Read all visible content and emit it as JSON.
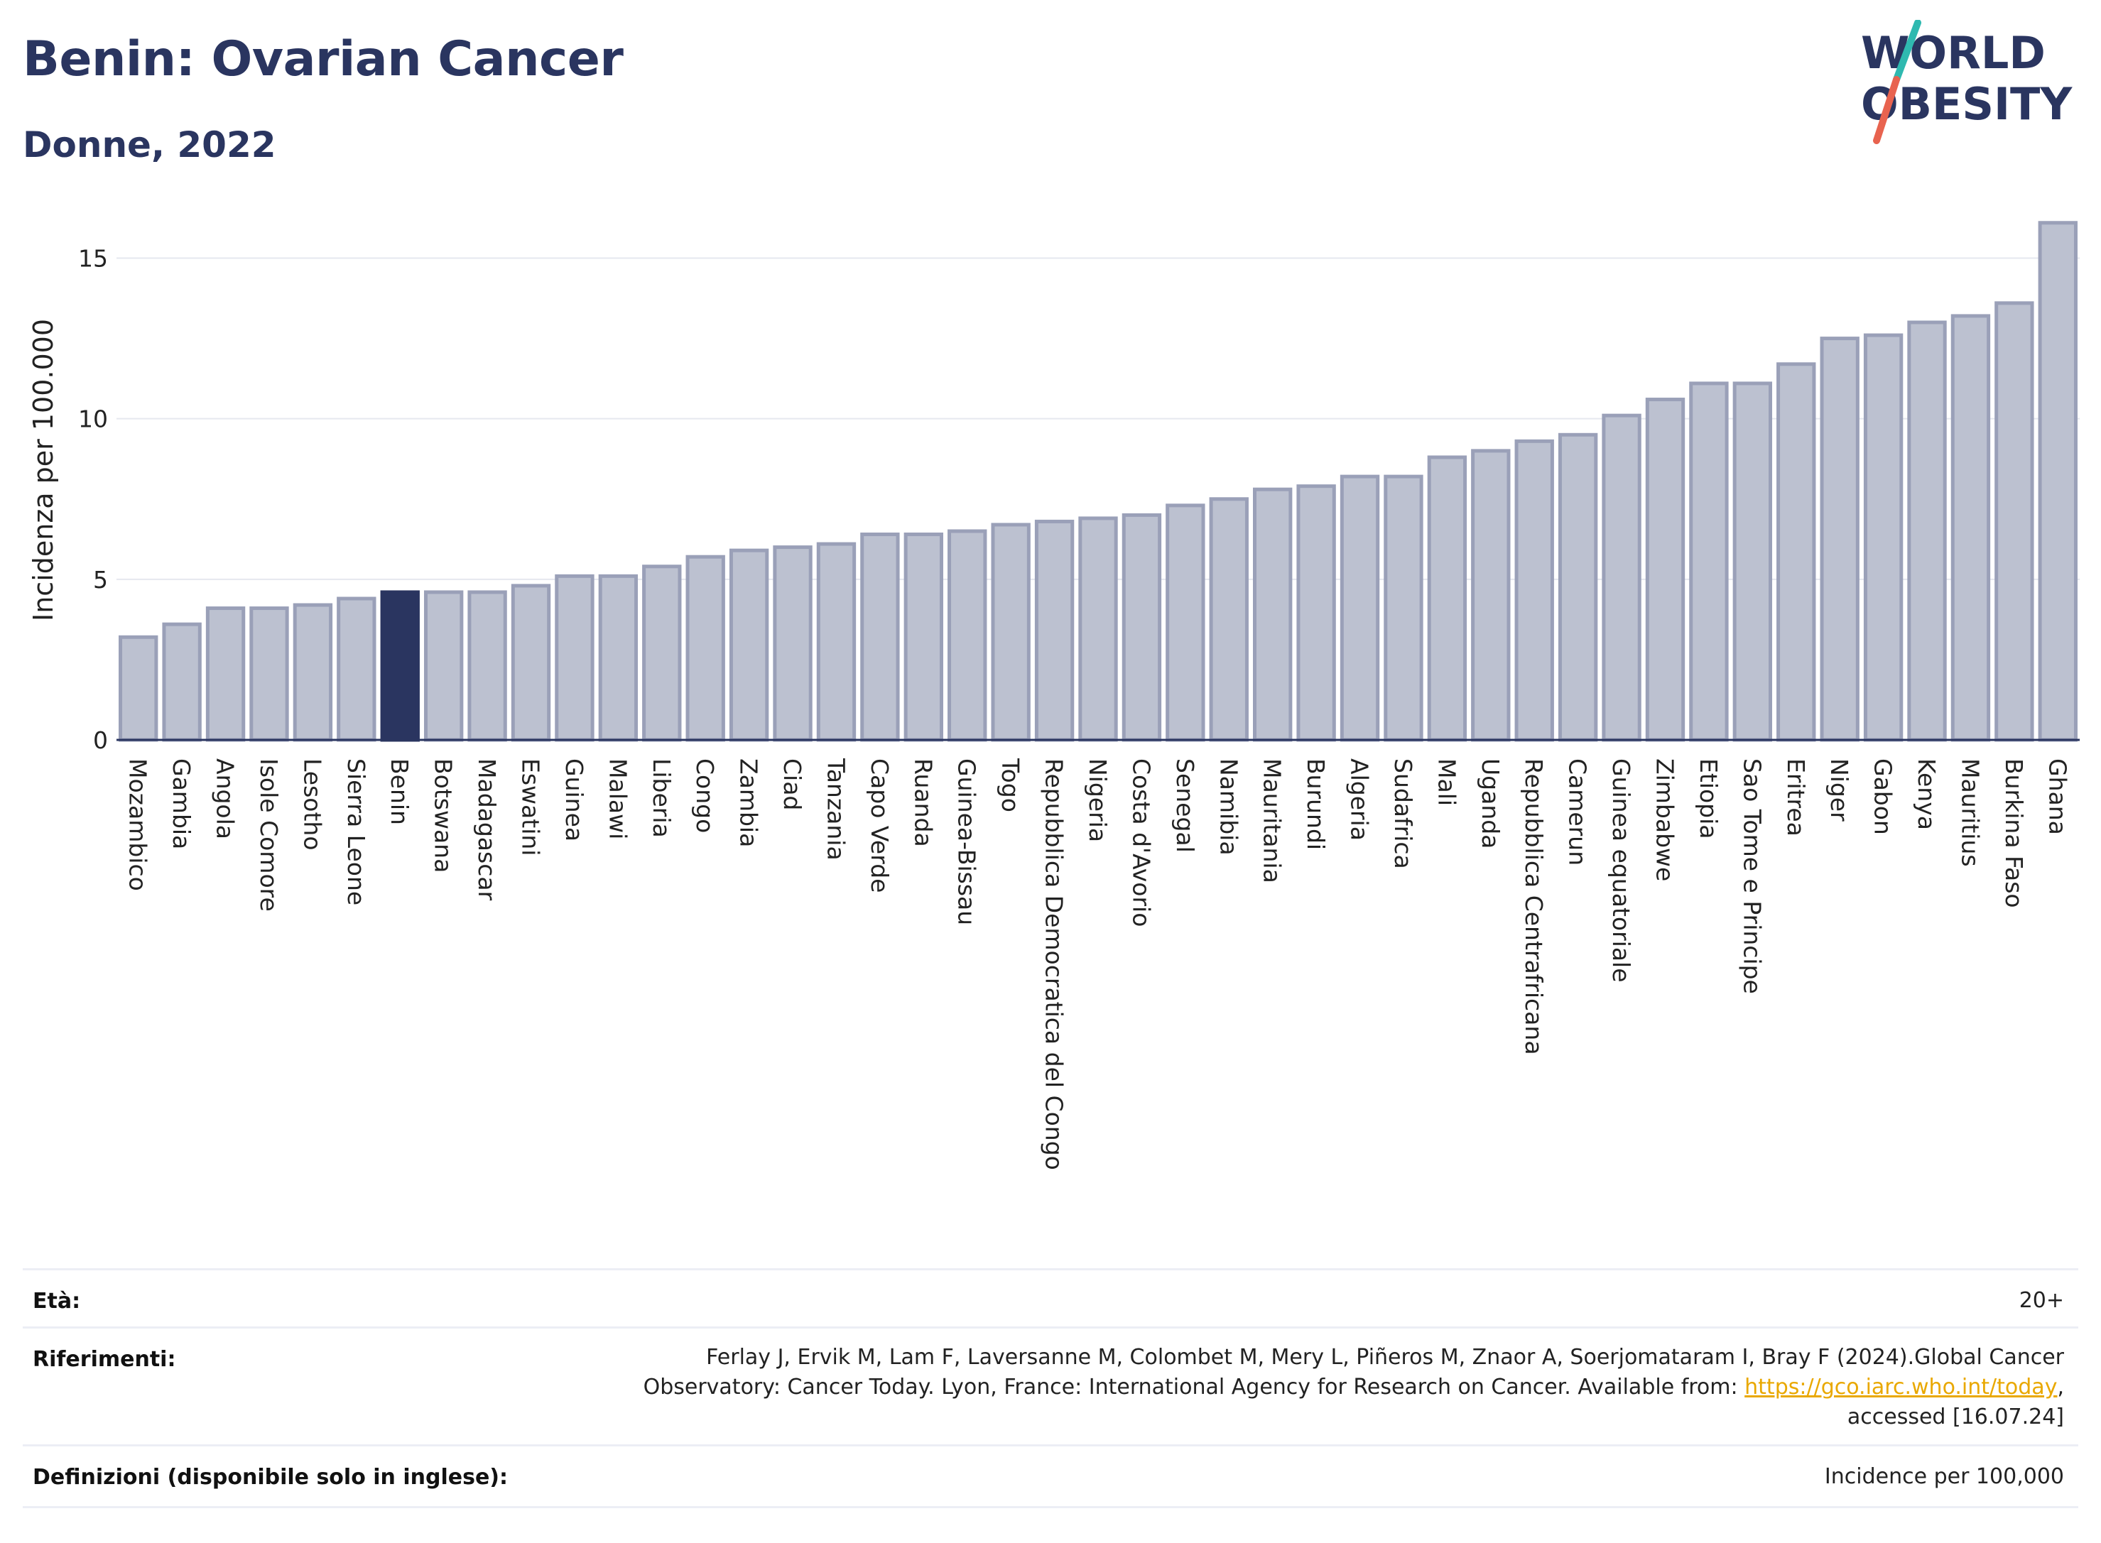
{
  "header": {
    "title": "Benin: Ovarian Cancer",
    "subtitle": "Donne, 2022"
  },
  "logo": {
    "line1": "WORLD",
    "line2": "OBESITY",
    "accent_colors": [
      "#2fb9b0",
      "#e8634f"
    ]
  },
  "colors": {
    "highlight": "#2a3560",
    "bar_fill": "#bcc1d0",
    "bar_stroke": "#9aa0b8",
    "grid": "#e6e8ef"
  },
  "chart_data": {
    "type": "bar",
    "highlight_category": "Benin",
    "categories": [
      "Mozambico",
      "Gambia",
      "Angola",
      "Isole Comore",
      "Lesotho",
      "Sierra Leone",
      "Benin",
      "Botswana",
      "Madagascar",
      "Eswatini",
      "Guinea",
      "Malawi",
      "Liberia",
      "Congo",
      "Zambia",
      "Ciad",
      "Tanzania",
      "Capo Verde",
      "Ruanda",
      "Guinea-Bissau",
      "Togo",
      "Repubblica Democratica del Congo",
      "Nigeria",
      "Costa d'Avorio",
      "Senegal",
      "Namibia",
      "Mauritania",
      "Burundi",
      "Algeria",
      "Sudafrica",
      "Mali",
      "Uganda",
      "Repubblica Centrafricana",
      "Camerun",
      "Guinea equatoriale",
      "Zimbabwe",
      "Etiopia",
      "Sao Tome e Principe",
      "Eritrea",
      "Niger",
      "Gabon",
      "Kenya",
      "Mauritius",
      "Burkina Faso",
      "Ghana"
    ],
    "values": [
      3.2,
      3.6,
      4.1,
      4.1,
      4.2,
      4.4,
      4.6,
      4.6,
      4.6,
      4.8,
      5.1,
      5.1,
      5.4,
      5.7,
      5.9,
      6.0,
      6.1,
      6.4,
      6.4,
      6.5,
      6.7,
      6.8,
      6.9,
      7.0,
      7.3,
      7.5,
      7.8,
      7.9,
      8.2,
      8.2,
      8.8,
      9.0,
      9.3,
      9.5,
      10.1,
      10.6,
      11.1,
      11.1,
      11.7,
      12.5,
      12.6,
      13.0,
      13.2,
      13.6,
      16.1
    ],
    "ylabel": "Incidenza per 100.000",
    "yticks": [
      0,
      5,
      10,
      15
    ],
    "ylim": [
      0,
      17.2
    ],
    "grid": true
  },
  "footer": {
    "age_label": "Età:",
    "age_value": "20+",
    "refs_label": "Riferimenti:",
    "refs_line1": "Ferlay J, Ervik M, Lam F, Laversanne M, Colombet M, Mery L, Piñeros M, Znaor A, Soerjomataram I, Bray F (2024).Global Cancer",
    "refs_line2_pre": "Observatory: Cancer Today. Lyon, France: International Agency for Research on Cancer. Available from: ",
    "refs_link": "https://gco.iarc.who.int/today",
    "refs_line2_post": ",",
    "refs_line3": "accessed [16.07.24]",
    "defs_label": "Definizioni (disponibile solo in inglese):",
    "defs_value": "Incidence per 100,000"
  }
}
